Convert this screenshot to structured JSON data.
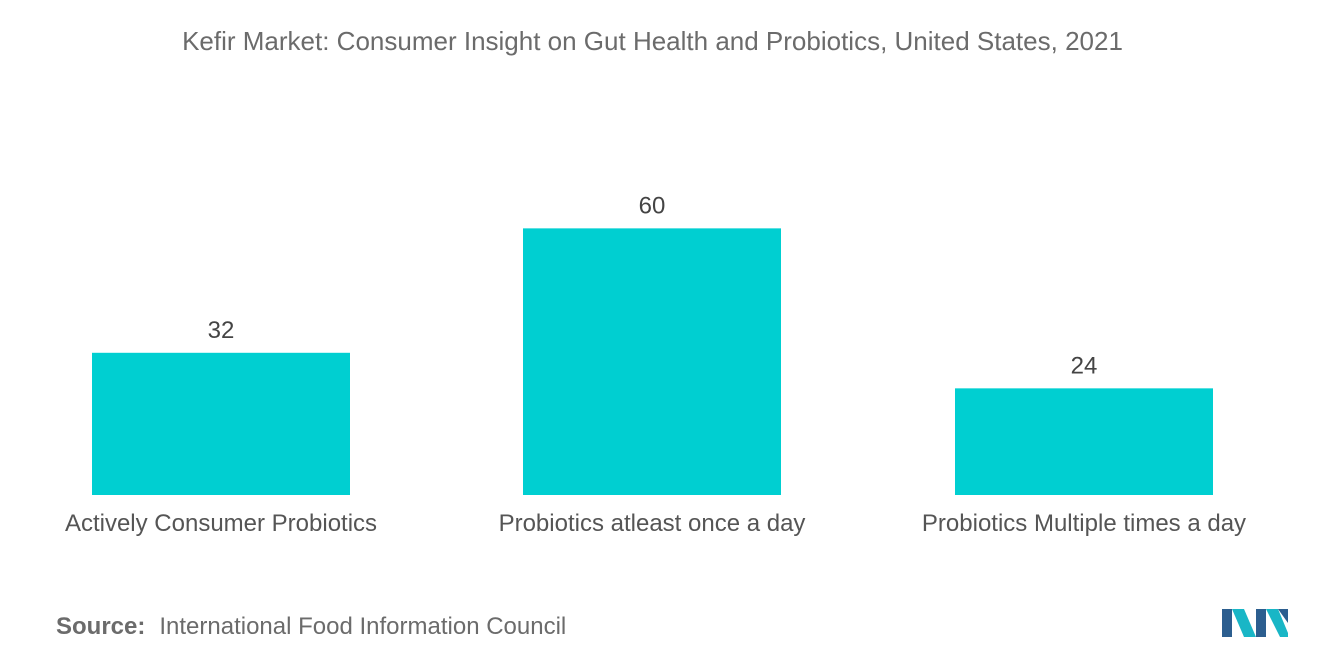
{
  "title": "Kefir Market: Consumer Insight on Gut Health and Probiotics, United States, 2021",
  "colors": {
    "bar": "#00cfd1",
    "text": "#555555",
    "logo_dark": "#2c5e8f",
    "logo_teal": "#19b6c6"
  },
  "chart_data": {
    "type": "bar",
    "title": "Kefir Market: Consumer Insight on Gut Health and Probiotics, United States, 2021",
    "categories": [
      "Actively Consumer Probiotics",
      "Probiotics atleast once a day",
      "Probiotics Multiple times a day"
    ],
    "values": [
      32,
      60,
      24
    ],
    "data_labels": [
      "32",
      "60",
      "24"
    ],
    "xlabel": "",
    "ylabel": "",
    "ylim": [
      0,
      60
    ],
    "grid": false,
    "legend": "none"
  },
  "source": {
    "label": "Source:",
    "text": "International Food Information Council"
  },
  "logo": {
    "icon": "mordor-intelligence-logo-icon"
  }
}
